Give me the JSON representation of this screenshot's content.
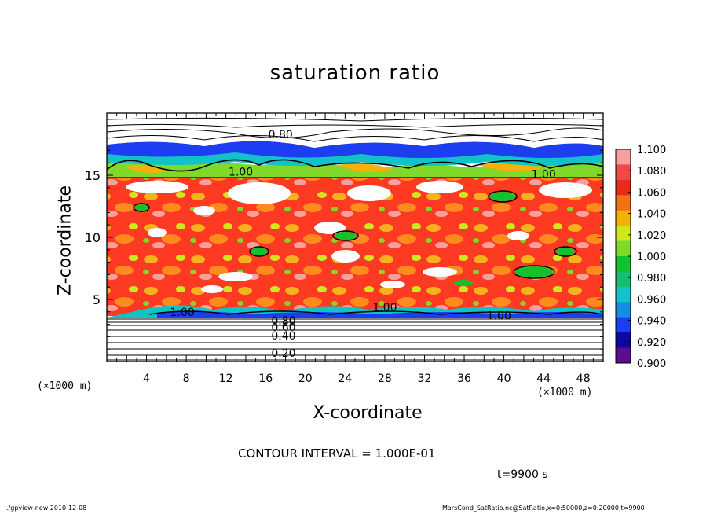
{
  "title": "saturation ratio",
  "footer": {
    "left": "./gpview-new  2010-12-08",
    "right": "MarsCond_SatRatio.nc@SatRatio,x=0:50000,z=0:20000,t=9900"
  },
  "annotations": {
    "contour_interval": "CONTOUR INTERVAL = 1.000E-01",
    "time": "t=9900 s"
  },
  "chart_data": {
    "type": "heatmap",
    "title": "saturation ratio",
    "xlabel": "X-coordinate",
    "ylabel": "Z-coordinate",
    "x_unit_label": "(×1000 m)",
    "xlim": [
      0,
      50
    ],
    "ylim": [
      0,
      20
    ],
    "x_ticks": [
      4,
      8,
      12,
      16,
      20,
      24,
      28,
      32,
      36,
      40,
      44,
      48
    ],
    "y_ticks": [
      5,
      10,
      15
    ],
    "contour_interval": 0.1,
    "contour_labels": [
      {
        "text": "0.80",
        "x": 17.5,
        "z": 18.3
      },
      {
        "text": "1.00",
        "x": 13.5,
        "z": 15.3
      },
      {
        "text": "1.00",
        "x": 44.0,
        "z": 15.1
      },
      {
        "text": "0.80",
        "x": 17.8,
        "z": 3.3
      },
      {
        "text": "0.60",
        "x": 17.8,
        "z": 2.8
      },
      {
        "text": "0.40",
        "x": 17.8,
        "z": 2.1
      },
      {
        "text": "0.20",
        "x": 17.8,
        "z": 0.7
      },
      {
        "text": "1.00",
        "x": 7.6,
        "z": 4.0
      },
      {
        "text": "1.00",
        "x": 28.0,
        "z": 4.4
      },
      {
        "text": "1.00",
        "x": 39.5,
        "z": 3.7
      }
    ],
    "colorbar": {
      "levels": [
        "1.100",
        "1.080",
        "1.060",
        "1.040",
        "1.020",
        "1.000",
        "0.980",
        "0.960",
        "0.940",
        "0.920",
        "0.900"
      ],
      "colors": [
        "#f7a0a0",
        "#ef4a4a",
        "#ea2a1a",
        "#f27016",
        "#f3b10a",
        "#cfe81e",
        "#7fd82a",
        "#12c22c",
        "#18bd72",
        "#11c3c6",
        "#168de0",
        "#1d3ef0",
        "#0a0aa0",
        "#5a108c"
      ]
    },
    "field_colors": {
      "high": "#ff2a2a",
      "mid": "#f3b10a",
      "near_one": "#cfe81e",
      "green": "#12c22c",
      "cyan": "#11c3c6",
      "blue": "#1d3ef0",
      "dark_blue": "#0a0aa0",
      "white": "#ffffff"
    }
  }
}
